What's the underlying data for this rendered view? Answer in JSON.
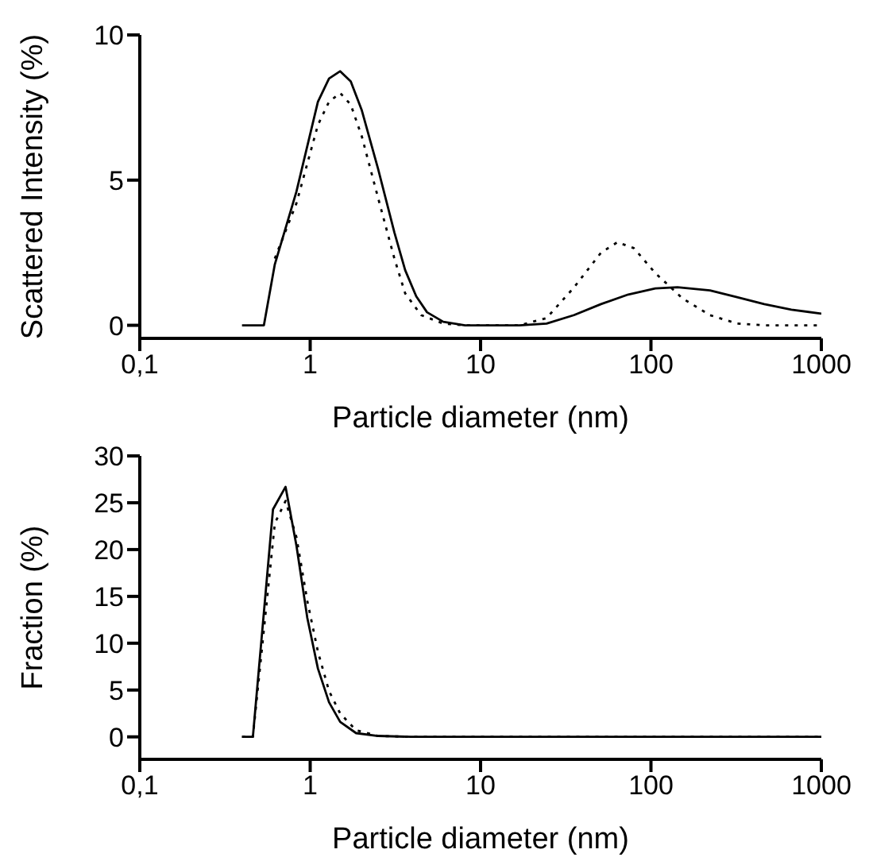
{
  "chart_data": [
    {
      "type": "line",
      "xlabel": "Particle diameter (nm)",
      "ylabel": "Scattered Intensity (%)",
      "log": "x",
      "xlim": [
        0.1,
        1000
      ],
      "xticks": [
        {
          "value": 0.1,
          "label": "0,1"
        },
        1,
        10,
        100,
        1000
      ],
      "ylim": [
        -0.45,
        10
      ],
      "yticks": [
        0,
        5,
        10
      ],
      "grid": false,
      "legend": false,
      "marker": "none",
      "series": [
        {
          "color": "#000000",
          "line_style": "solid",
          "x": [
            0.398,
            0.535,
            0.62,
            0.83,
            1.11,
            1.29,
            1.5,
            1.73,
            2.01,
            2.5,
            3.12,
            3.61,
            4.19,
            4.85,
            6.04,
            8.11,
            16.9,
            24.4,
            35.3,
            50.9,
            73.6,
            106,
            143,
            222,
            320,
            462,
            667,
            1000
          ],
          "values": [
            0,
            0,
            2.1,
            4.6,
            7.7,
            8.5,
            8.75,
            8.4,
            7.4,
            5.4,
            3.2,
            1.9,
            1.0,
            0.45,
            0.12,
            0,
            0,
            0.06,
            0.35,
            0.73,
            1.06,
            1.27,
            1.31,
            1.2,
            0.97,
            0.73,
            0.54,
            0.4
          ]
        },
        {
          "color": "#000000",
          "line_style": "dotted",
          "x": [
            0.62,
            0.83,
            1.11,
            1.29,
            1.5,
            1.73,
            2.01,
            2.5,
            3.12,
            3.61,
            4.48,
            6.04,
            8.11,
            16.9,
            24.4,
            35.3,
            50.9,
            63.5,
            79.3,
            106,
            153,
            222,
            320,
            462,
            1000
          ],
          "values": [
            2.3,
            4.2,
            6.9,
            7.7,
            8,
            7.6,
            6.5,
            4.4,
            2.3,
            1.1,
            0.35,
            0.06,
            0,
            0,
            0.25,
            1.3,
            2.5,
            2.86,
            2.66,
            1.8,
            0.93,
            0.35,
            0.06,
            0,
            0
          ]
        }
      ]
    },
    {
      "type": "line",
      "xlabel": "Particle diameter (nm)",
      "ylabel": "Fraction (%)",
      "log": "x",
      "xlim": [
        0.1,
        1000
      ],
      "xticks": [
        {
          "value": 0.1,
          "label": "0,1"
        },
        1,
        10,
        100,
        1000
      ],
      "ylim": [
        -2.4,
        30
      ],
      "yticks": [
        0,
        5,
        10,
        15,
        20,
        25,
        30
      ],
      "grid": false,
      "legend": false,
      "marker": "none",
      "series": [
        {
          "color": "#000000",
          "line_style": "solid",
          "x": [
            0.398,
            0.461,
            0.605,
            0.717,
            0.831,
            0.962,
            1.11,
            1.29,
            1.5,
            1.86,
            2.5,
            3.89,
            1000
          ],
          "values": [
            0,
            0,
            24.3,
            26.7,
            20.4,
            12.7,
            7.3,
            3.7,
            1.6,
            0.4,
            0.1,
            0,
            0
          ]
        },
        {
          "color": "#000000",
          "line_style": "dotted",
          "x": [
            0.398,
            0.461,
            0.62,
            0.717,
            0.831,
            0.962,
            1.11,
            1.29,
            1.5,
            1.86,
            2.5,
            3.89,
            1000
          ],
          "values": [
            0,
            0,
            22.8,
            25.2,
            21.3,
            14.5,
            9.1,
            4.9,
            2.5,
            0.7,
            0.1,
            0,
            0
          ]
        }
      ]
    }
  ]
}
